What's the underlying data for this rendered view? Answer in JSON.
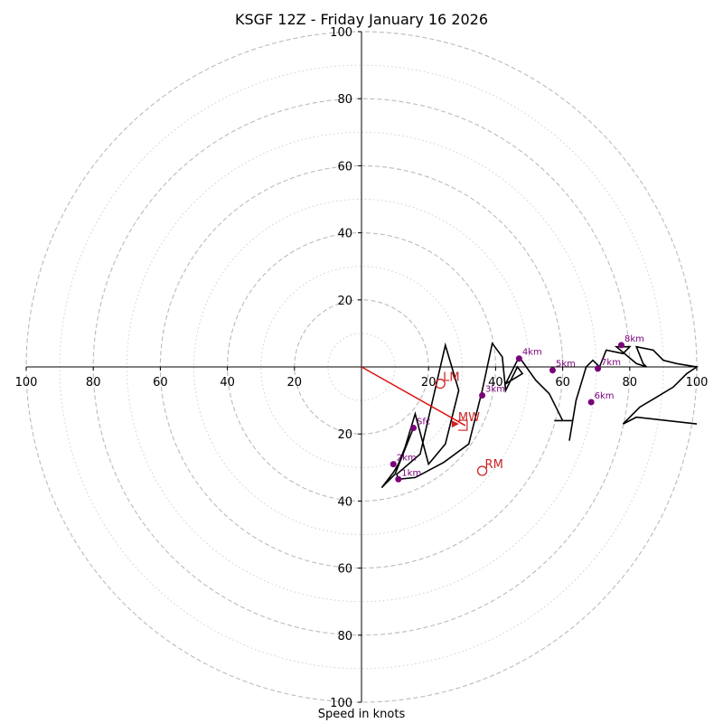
{
  "chart_data": {
    "type": "hodograph",
    "title": "KSGF 12Z - Friday January 16 2026",
    "xlabel": "Speed in knots",
    "units": "knots",
    "axis_range": [
      -100,
      100
    ],
    "major_rings": [
      20,
      40,
      60,
      80,
      100
    ],
    "minor_rings": [
      10,
      30,
      50,
      70,
      90
    ],
    "x_ticks": [
      {
        "value": -100,
        "label": "100"
      },
      {
        "value": -80,
        "label": "80"
      },
      {
        "value": -60,
        "label": "60"
      },
      {
        "value": -40,
        "label": "40"
      },
      {
        "value": -20,
        "label": "20"
      },
      {
        "value": 20,
        "label": "20"
      },
      {
        "value": 40,
        "label": "40"
      },
      {
        "value": 60,
        "label": "60"
      },
      {
        "value": 80,
        "label": "80"
      },
      {
        "value": 100,
        "label": "100"
      }
    ],
    "y_ticks": [
      {
        "value": 100,
        "label": "100"
      },
      {
        "value": 80,
        "label": "80"
      },
      {
        "value": 60,
        "label": "60"
      },
      {
        "value": 40,
        "label": "40"
      },
      {
        "value": 20,
        "label": "20"
      },
      {
        "value": -20,
        "label": "20"
      },
      {
        "value": -40,
        "label": "40"
      },
      {
        "value": -60,
        "label": "60"
      },
      {
        "value": -80,
        "label": "80"
      },
      {
        "value": -100,
        "label": "100"
      }
    ],
    "trace": {
      "name": "wind profile",
      "color": "#000000",
      "points": [
        [
          15.5,
          -18.2
        ],
        [
          10,
          -32
        ],
        [
          6,
          -36
        ],
        [
          9.5,
          -31.5
        ],
        [
          11,
          -29
        ],
        [
          13,
          -24
        ],
        [
          16,
          -14
        ],
        [
          20,
          -29
        ],
        [
          25,
          -23
        ],
        [
          29,
          -7
        ],
        [
          25,
          6.5
        ],
        [
          17.5,
          -26
        ],
        [
          10.5,
          -32
        ],
        [
          11,
          -33.5
        ],
        [
          16,
          -33
        ],
        [
          24.5,
          -28.5
        ],
        [
          32,
          -23
        ],
        [
          36,
          -7
        ],
        [
          39,
          7
        ],
        [
          42,
          3
        ],
        [
          43,
          -7
        ],
        [
          46.5,
          0
        ],
        [
          48,
          -2
        ],
        [
          43,
          -5
        ],
        [
          47,
          3
        ],
        [
          52,
          -4
        ],
        [
          56,
          -8
        ],
        [
          60,
          -16
        ],
        [
          57.5,
          -16
        ],
        [
          63,
          -16
        ],
        [
          62,
          -22
        ],
        [
          64,
          -10
        ],
        [
          67,
          0
        ],
        [
          69,
          2
        ],
        [
          71,
          0
        ],
        [
          73,
          5
        ],
        [
          78,
          4
        ],
        [
          80,
          6
        ],
        [
          76,
          6
        ],
        [
          82,
          1
        ],
        [
          85,
          0
        ],
        [
          84,
          1
        ],
        [
          82,
          6
        ],
        [
          87,
          5
        ],
        [
          90,
          2
        ],
        [
          94,
          1
        ],
        [
          100,
          0
        ],
        [
          97,
          -2
        ],
        [
          93,
          -6
        ],
        [
          88,
          -9
        ],
        [
          83,
          -12
        ],
        [
          78,
          -17
        ],
        [
          82,
          -15
        ],
        [
          100,
          -17
        ]
      ]
    },
    "height_markers": [
      {
        "label": "Sfc",
        "u": 15.5,
        "v": -18.2
      },
      {
        "label": "1km",
        "u": 11,
        "v": -33.5
      },
      {
        "label": "2km",
        "u": 9.5,
        "v": -29
      },
      {
        "label": "3km",
        "u": 36,
        "v": -8.5
      },
      {
        "label": "4km",
        "u": 47,
        "v": 2.5
      },
      {
        "label": "5km",
        "u": 57,
        "v": -1
      },
      {
        "label": "6km",
        "u": 68.5,
        "v": -10.5
      },
      {
        "label": "7km",
        "u": 70.5,
        "v": -0.5
      },
      {
        "label": "8km",
        "u": 77.5,
        "v": 6.5
      }
    ],
    "storm_motions": [
      {
        "label": "LM",
        "u": 23.5,
        "v": -5
      },
      {
        "label": "RM",
        "u": 36,
        "v": -31
      },
      {
        "label": "MW",
        "u": 28,
        "v": -17
      }
    ],
    "shear_vector": {
      "from": [
        0,
        0
      ],
      "to": [
        31,
        -17.5
      ],
      "color": "#dd1111"
    },
    "colors": {
      "trace": "#000000",
      "marker": "#7a007a",
      "storm": "#cc2222",
      "ring": "#bbbbbb",
      "axis": "#000000"
    }
  }
}
